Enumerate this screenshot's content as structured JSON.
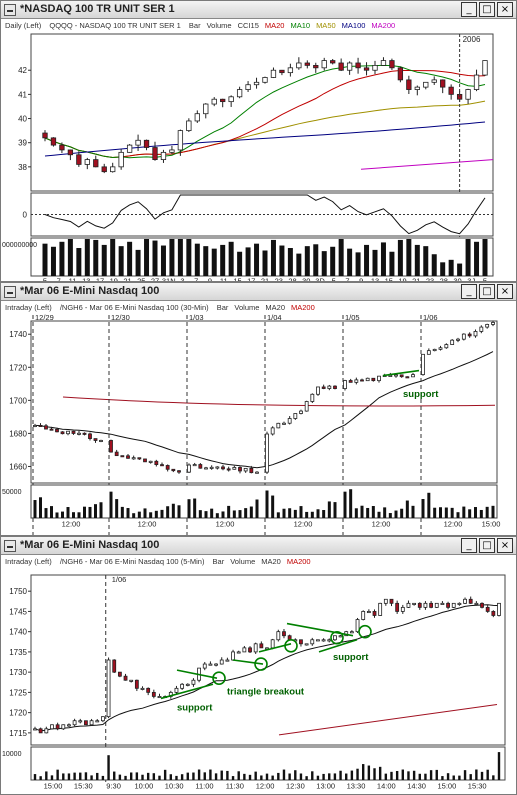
{
  "windows": [
    {
      "title": "*NASDAQ 100 TR UNIT SER 1",
      "period": "Daily",
      "scale": "(Left)",
      "symbol": "QQQQ - NASDAQ 100 TR UNIT SER 1",
      "legend": [
        {
          "label": "Bar",
          "color": "#333333"
        },
        {
          "label": "Volume",
          "color": "#333333"
        },
        {
          "label": "CCI15",
          "color": "#333333"
        },
        {
          "label": "MA20",
          "color": "#c00000"
        },
        {
          "label": "MA10",
          "color": "#008000"
        },
        {
          "label": "MA50",
          "color": "#a09000"
        },
        {
          "label": "MA100",
          "color": "#000080"
        },
        {
          "label": "MA200",
          "color": "#c000c0"
        }
      ],
      "volume_label": "000000000"
    },
    {
      "title": "*Mar 06  E-Mini Nasdaq 100",
      "period": "Intraday",
      "scale": "(Left)",
      "symbol": "/NGH6 - Mar 06  E-Mini Nasdaq 100  (30-Min)",
      "legend": [
        {
          "label": "Bar",
          "color": "#333333"
        },
        {
          "label": "Volume",
          "color": "#333333"
        },
        {
          "label": "MA20",
          "color": "#333333"
        },
        {
          "label": "MA200",
          "color": "#c00000"
        }
      ],
      "volume_label": "50000"
    },
    {
      "title": "*Mar 06  E-Mini Nasdaq 100",
      "period": "Intraday",
      "scale": "(Left)",
      "symbol": "/NGH6 - Mar 06  E-Mini Nasdaq 100  (5-Min)",
      "legend": [
        {
          "label": "Bar",
          "color": "#333333"
        },
        {
          "label": "Volume",
          "color": "#333333"
        },
        {
          "label": "MA20",
          "color": "#333333"
        },
        {
          "label": "MA200",
          "color": "#c00000"
        }
      ],
      "volume_label": "10000"
    }
  ],
  "window_controls": {
    "minimize": "_",
    "maximize": "□",
    "close": "×"
  },
  "chart_data": [
    {
      "type": "line",
      "instrument": "QQQQ",
      "ylim": [
        37,
        43.5
      ],
      "yticks": [
        38,
        39,
        40,
        41,
        42
      ],
      "ytick_labels": [
        "38",
        "39",
        "40",
        "41",
        "42"
      ],
      "xtick_labels": [
        "5",
        "7",
        "11",
        "13",
        "17",
        "19",
        "21",
        "25",
        "27",
        "31N",
        "3",
        "7",
        "9",
        "11",
        "15",
        "17",
        "21",
        "23",
        "28",
        "30",
        "3D",
        "5",
        "7",
        "9",
        "13",
        "15",
        "19",
        "21",
        "23",
        "28",
        "30",
        "3J",
        "5"
      ],
      "year_label": "2006",
      "close": [
        39.2,
        38.9,
        38.7,
        38.5,
        38.1,
        38.3,
        38.0,
        37.8,
        38.0,
        38.6,
        38.9,
        39.1,
        38.8,
        38.3,
        38.6,
        38.7,
        39.5,
        39.9,
        40.2,
        40.6,
        40.8,
        40.7,
        40.9,
        41.2,
        41.4,
        41.5,
        41.7,
        42.0,
        41.9,
        42.1,
        42.3,
        42.2,
        42.1,
        42.4,
        42.3,
        42.0,
        42.3,
        42.1,
        42.0,
        42.2,
        42.4,
        42.1,
        41.6,
        41.2,
        41.3,
        41.5,
        41.6,
        41.3,
        41.0,
        40.8,
        41.2,
        41.8,
        42.4
      ],
      "cci": {
        "ylim": [
          -220,
          220
        ],
        "zero_label": "0"
      },
      "volume_scale": 0.55,
      "volume": [
        0.52,
        0.47,
        0.55,
        0.6,
        0.45,
        0.62,
        0.58,
        0.5,
        0.66,
        0.48,
        0.55,
        0.42,
        0.63,
        0.57,
        0.49,
        0.68,
        0.72,
        0.6,
        0.52,
        0.48,
        0.44,
        0.5,
        0.55,
        0.39,
        0.46,
        0.52,
        0.41,
        0.58,
        0.49,
        0.45,
        0.36,
        0.48,
        0.51,
        0.4,
        0.47,
        0.62,
        0.44,
        0.38,
        0.5,
        0.42,
        0.54,
        0.39,
        0.58,
        0.67,
        0.5,
        0.48,
        0.35,
        0.22,
        0.26,
        0.2,
        0.64,
        0.55,
        0.6
      ],
      "marker_index": 49
    },
    {
      "type": "line",
      "instrument": "/NGH6",
      "interval": "30-Min",
      "ylim": [
        1650,
        1748
      ],
      "yticks": [
        1660,
        1680,
        1700,
        1720,
        1740
      ],
      "ytick_labels": [
        "1660",
        "1680",
        "1700",
        "1720",
        "1740"
      ],
      "date_labels": [
        "12/29",
        "12/30",
        "1/03",
        "1/04",
        "1/05",
        "1/06"
      ],
      "time_labels": [
        "12:00",
        "12:00",
        "12:00",
        "12:00",
        "12:00",
        "12:00",
        "15:00"
      ],
      "days": [
        {
          "start": 1685,
          "end": 1676
        },
        {
          "start": 1668,
          "end": 1658
        },
        {
          "start": 1660,
          "end": 1657
        },
        {
          "start": 1680,
          "end": 1708
        },
        {
          "start": 1711,
          "end": 1716
        },
        {
          "start": 1729,
          "end": 1746
        }
      ],
      "ma200": {
        "start": 1702,
        "low": 1697,
        "end": 1697
      },
      "support_label": "support",
      "volume_scale": 0.55
    },
    {
      "type": "line",
      "instrument": "/NGH6",
      "interval": "5-Min",
      "ylim": [
        1712,
        1754
      ],
      "yticks": [
        1715,
        1720,
        1725,
        1730,
        1735,
        1740,
        1745,
        1750
      ],
      "ytick_labels": [
        "1715",
        "1720",
        "1725",
        "1730",
        "1735",
        "1740",
        "1745",
        "1750"
      ],
      "date_label": "1/06",
      "time_labels": [
        "15:00",
        "15:30",
        "9:30",
        "10:00",
        "10:30",
        "11:00",
        "11:30",
        "12:00",
        "12:30",
        "13:00",
        "13:30",
        "14:00",
        "14:30",
        "15:00",
        "15:30"
      ],
      "close": [
        1716,
        1715,
        1716,
        1717,
        1716,
        1717,
        1717,
        1718,
        1718,
        1717,
        1718,
        1718,
        1719,
        1733,
        1730,
        1729,
        1728,
        1728,
        1726,
        1726,
        1725,
        1724,
        1724,
        1724,
        1725,
        1726,
        1727,
        1727,
        1728,
        1731,
        1732,
        1732,
        1732,
        1733,
        1733,
        1735,
        1735,
        1736,
        1735,
        1737,
        1736,
        1736,
        1738,
        1740,
        1739,
        1738,
        1738,
        1737,
        1737,
        1738,
        1738,
        1738,
        1738,
        1739,
        1739,
        1740,
        1740,
        1743,
        1745,
        1745,
        1744,
        1747,
        1748,
        1747,
        1745,
        1746,
        1747,
        1747,
        1746,
        1747,
        1746,
        1747,
        1747,
        1746,
        1747,
        1747,
        1748,
        1747,
        1747,
        1746,
        1745,
        1744,
        1747
      ],
      "annotations": {
        "support_left": "support",
        "breakout": "triangle breakout",
        "support_right": "support"
      },
      "volume_scale": 0.55
    }
  ]
}
